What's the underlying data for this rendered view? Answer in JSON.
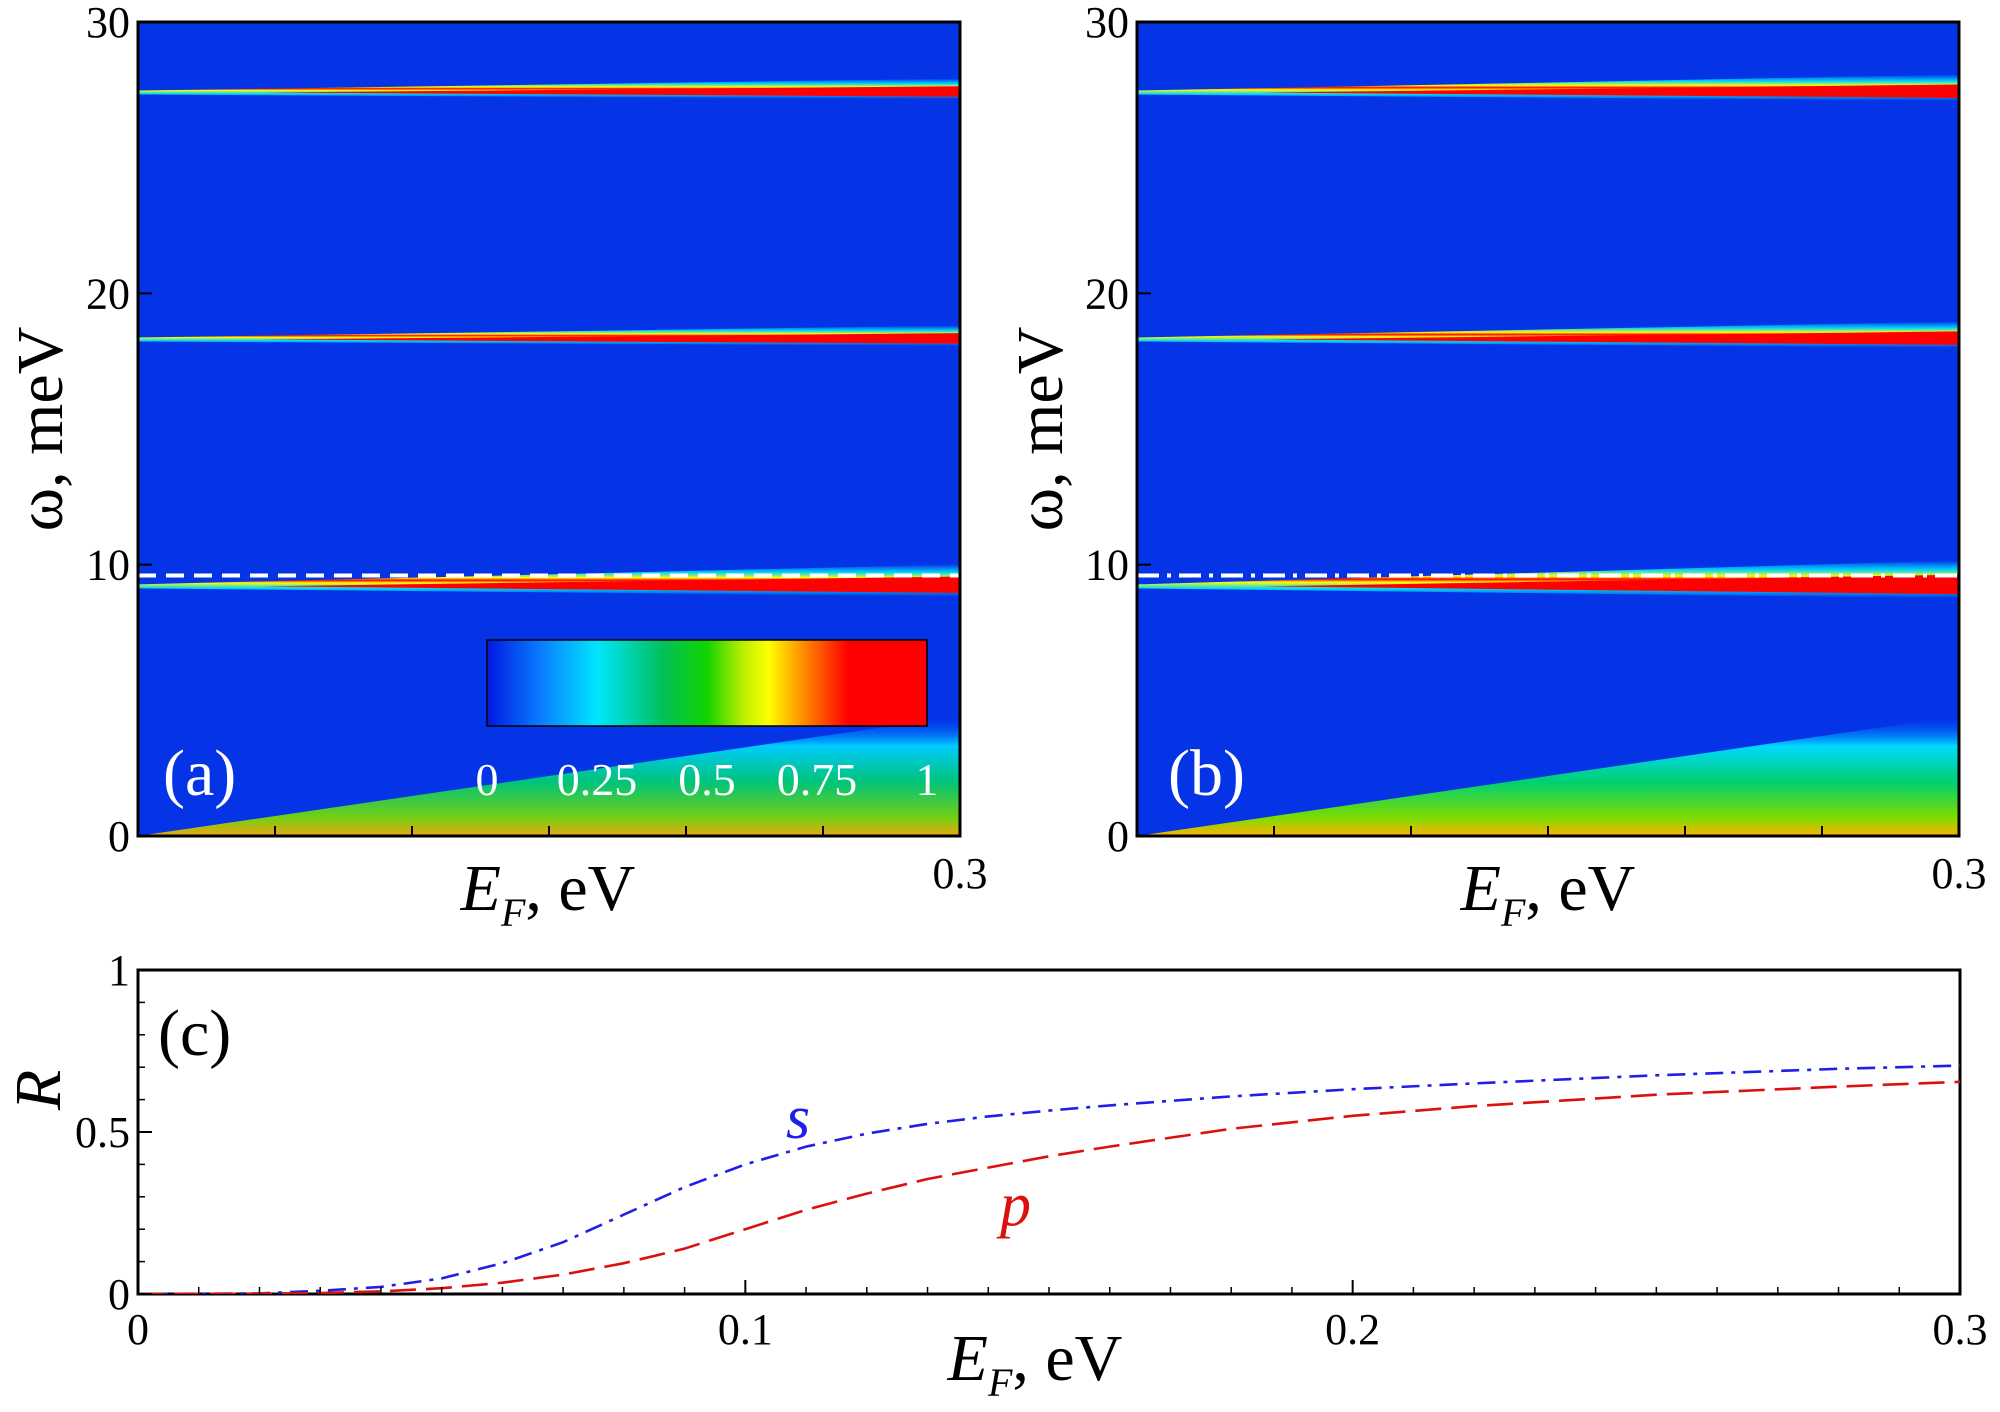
{
  "chart_data": [
    {
      "panel": "(a)",
      "type": "heatmap",
      "xlabel_main": "E",
      "xlabel_sub": "F",
      "xlabel_rest": ", eV",
      "ylabel": "ω, meV",
      "xlim": [
        0,
        0.3
      ],
      "ylim": [
        0,
        30
      ],
      "x_tick_labels": [
        "0.3"
      ],
      "y_ticks": [
        0,
        10,
        20,
        30
      ],
      "y_tick_labels": [
        "0",
        "10",
        "20",
        "30"
      ],
      "colorbar": {
        "range": [
          0,
          1
        ],
        "tick_labels": [
          "0",
          "0.25",
          "0.5",
          "0.75",
          "1"
        ]
      },
      "resonances_meV": [
        9.2,
        18.3,
        27.4
      ],
      "guide_line": {
        "y_meV": 9.6,
        "style": "dashed"
      }
    },
    {
      "panel": "(b)",
      "type": "heatmap",
      "xlabel_main": "E",
      "xlabel_sub": "F",
      "xlabel_rest": ", eV",
      "ylabel": "ω, meV",
      "xlim": [
        0,
        0.3
      ],
      "ylim": [
        0,
        30
      ],
      "x_tick_labels": [
        "0.3"
      ],
      "y_ticks": [
        0,
        10,
        20,
        30
      ],
      "y_tick_labels": [
        "0",
        "10",
        "20",
        "30"
      ],
      "resonances_meV": [
        9.2,
        18.3,
        27.4
      ],
      "guide_line": {
        "y_meV": 9.6,
        "style": "dash-dot"
      }
    },
    {
      "panel": "(c)",
      "type": "line",
      "xlabel_main": "E",
      "xlabel_sub": "F",
      "xlabel_rest": ", eV",
      "ylabel": "R",
      "xlim": [
        0,
        0.3
      ],
      "ylim": [
        0,
        1
      ],
      "x_ticks": [
        0,
        0.1,
        0.2,
        0.3
      ],
      "x_tick_labels": [
        "0",
        "0.1",
        "0.2",
        "0.3"
      ],
      "y_ticks": [
        0,
        0.5,
        1
      ],
      "y_tick_labels": [
        "0",
        "0.5",
        "1"
      ],
      "series": [
        {
          "name": "s",
          "color": "#1f1fe6",
          "style": "dash-dot",
          "x": [
            0,
            0.02,
            0.03,
            0.04,
            0.05,
            0.06,
            0.07,
            0.08,
            0.09,
            0.1,
            0.11,
            0.12,
            0.13,
            0.14,
            0.15,
            0.16,
            0.18,
            0.2,
            0.22,
            0.25,
            0.28,
            0.3
          ],
          "y": [
            0,
            0.002,
            0.01,
            0.022,
            0.048,
            0.095,
            0.16,
            0.245,
            0.33,
            0.4,
            0.455,
            0.495,
            0.525,
            0.548,
            0.566,
            0.582,
            0.61,
            0.632,
            0.65,
            0.675,
            0.695,
            0.705
          ]
        },
        {
          "name": "p",
          "color": "#dd1010",
          "style": "dashed",
          "x": [
            0,
            0.02,
            0.03,
            0.04,
            0.05,
            0.06,
            0.07,
            0.08,
            0.09,
            0.1,
            0.11,
            0.12,
            0.13,
            0.14,
            0.15,
            0.16,
            0.18,
            0.2,
            0.22,
            0.25,
            0.28,
            0.3
          ],
          "y": [
            0,
            0.001,
            0.003,
            0.008,
            0.018,
            0.035,
            0.06,
            0.095,
            0.14,
            0.2,
            0.26,
            0.31,
            0.355,
            0.39,
            0.425,
            0.455,
            0.51,
            0.55,
            0.58,
            0.615,
            0.64,
            0.655
          ]
        }
      ]
    }
  ]
}
